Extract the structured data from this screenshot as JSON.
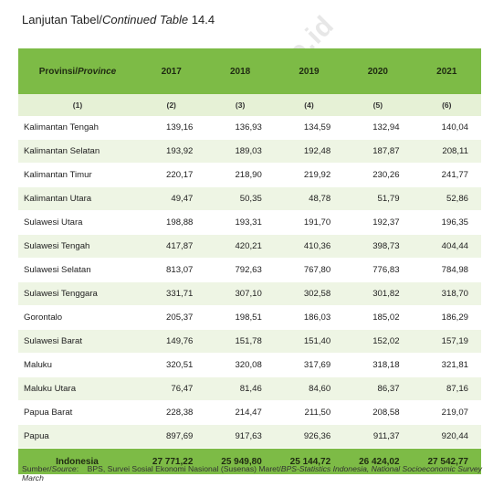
{
  "caption": {
    "prefix": "Lanjutan Tabel/",
    "italic": "Continued Table",
    "number": " 14.4"
  },
  "header": {
    "province_label": "Provinsi/",
    "province_label_en": "Province",
    "years": [
      "2017",
      "2018",
      "2019",
      "2020",
      "2021"
    ],
    "col_numbers": [
      "(1)",
      "(2)",
      "(3)",
      "(4)",
      "(5)",
      "(6)"
    ]
  },
  "rows": [
    {
      "name": "Kalimantan Tengah",
      "v": [
        "139,16",
        "136,93",
        "134,59",
        "132,94",
        "140,04"
      ]
    },
    {
      "name": "Kalimantan Selatan",
      "v": [
        "193,92",
        "189,03",
        "192,48",
        "187,87",
        "208,11"
      ]
    },
    {
      "name": "Kalimantan Timur",
      "v": [
        "220,17",
        "218,90",
        "219,92",
        "230,26",
        "241,77"
      ]
    },
    {
      "name": "Kalimantan Utara",
      "v": [
        "49,47",
        "50,35",
        "48,78",
        "51,79",
        "52,86"
      ]
    },
    {
      "name": "Sulawesi Utara",
      "v": [
        "198,88",
        "193,31",
        "191,70",
        "192,37",
        "196,35"
      ]
    },
    {
      "name": "Sulawesi Tengah",
      "v": [
        "417,87",
        "420,21",
        "410,36",
        "398,73",
        "404,44"
      ]
    },
    {
      "name": "Sulawesi Selatan",
      "v": [
        "813,07",
        "792,63",
        "767,80",
        "776,83",
        "784,98"
      ]
    },
    {
      "name": "Sulawesi Tenggara",
      "v": [
        "331,71",
        "307,10",
        "302,58",
        "301,82",
        "318,70"
      ]
    },
    {
      "name": "Gorontalo",
      "v": [
        "205,37",
        "198,51",
        "186,03",
        "185,02",
        "186,29"
      ]
    },
    {
      "name": "Sulawesi Barat",
      "v": [
        "149,76",
        "151,78",
        "151,40",
        "152,02",
        "157,19"
      ]
    },
    {
      "name": "Maluku",
      "v": [
        "320,51",
        "320,08",
        "317,69",
        "318,18",
        "321,81"
      ]
    },
    {
      "name": "Maluku Utara",
      "v": [
        "76,47",
        "81,46",
        "84,60",
        "86,37",
        "87,16"
      ]
    },
    {
      "name": "Papua Barat",
      "v": [
        "228,38",
        "214,47",
        "211,50",
        "208,58",
        "219,07"
      ]
    },
    {
      "name": "Papua",
      "v": [
        "897,69",
        "917,63",
        "926,36",
        "911,37",
        "920,44"
      ]
    }
  ],
  "total": {
    "name": "Indonesia",
    "v": [
      "27 771,22",
      "25 949,80",
      "25 144,72",
      "26 424,02",
      "27 542,77"
    ]
  },
  "source": {
    "label": "Sumber/",
    "label_en": "Source",
    "text": "BPS, Survei Sosial Ekonomi Nasional (Susenas) Maret/",
    "text_en": "BPS-Statistics Indonesia, National Socioeconomic Survey March"
  },
  "watermark": "https://kaltim.bps.go.id"
}
